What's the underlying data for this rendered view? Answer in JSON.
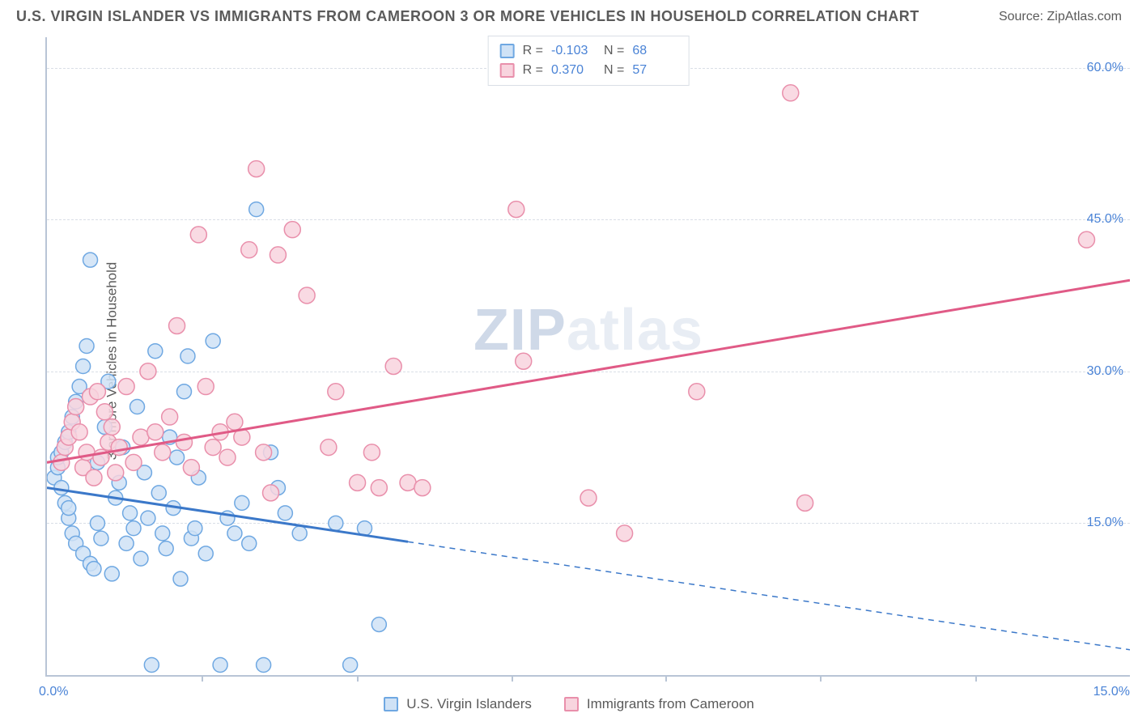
{
  "header": {
    "title": "U.S. VIRGIN ISLANDER VS IMMIGRANTS FROM CAMEROON 3 OR MORE VEHICLES IN HOUSEHOLD CORRELATION CHART",
    "source": "Source: ZipAtlas.com"
  },
  "y_axis": {
    "label": "3 or more Vehicles in Household",
    "ticks": [
      {
        "value": 15.0,
        "label": "15.0%"
      },
      {
        "value": 30.0,
        "label": "30.0%"
      },
      {
        "value": 45.0,
        "label": "45.0%"
      },
      {
        "value": 60.0,
        "label": "60.0%"
      }
    ],
    "min": 0.0,
    "max": 63.0
  },
  "x_axis": {
    "ticks": [
      {
        "value": 0.0,
        "label": "0.0%"
      },
      {
        "value": 15.0,
        "label": "15.0%"
      }
    ],
    "intermediate_ticks": [
      2.14,
      4.29,
      6.43,
      8.57,
      10.71,
      12.86
    ],
    "min": 0.0,
    "max": 15.0
  },
  "legend_top": {
    "rows": [
      {
        "swatch_fill": "#cfe2f6",
        "swatch_border": "#6fa8e2",
        "r_label": "R =",
        "r_value": "-0.103",
        "n_label": "N =",
        "n_value": "68"
      },
      {
        "swatch_fill": "#f8d4de",
        "swatch_border": "#e98fab",
        "r_label": "R =",
        "r_value": "0.370",
        "n_label": "N =",
        "n_value": "57"
      }
    ]
  },
  "legend_bottom": {
    "items": [
      {
        "swatch_fill": "#cfe2f6",
        "swatch_border": "#6fa8e2",
        "label": "U.S. Virgin Islanders"
      },
      {
        "swatch_fill": "#f8d4de",
        "swatch_border": "#e98fab",
        "label": "Immigrants from Cameroon"
      }
    ]
  },
  "watermark": {
    "part1": "ZIP",
    "part2": "atlas"
  },
  "series": [
    {
      "name": "U.S. Virgin Islanders",
      "color_fill": "#cfe2f6",
      "color_stroke": "#6fa8e2",
      "marker_radius": 9,
      "regression": {
        "color": "#3b78c9",
        "width": 3,
        "solid_from_x": 0.0,
        "solid_to_x": 5.0,
        "dash_from_x": 5.0,
        "dash_to_x": 15.0,
        "y_at_x0": 18.5,
        "y_at_x15": 2.5
      },
      "points": [
        [
          0.1,
          19.5
        ],
        [
          0.15,
          20.5
        ],
        [
          0.15,
          21.5
        ],
        [
          0.2,
          22.0
        ],
        [
          0.2,
          18.5
        ],
        [
          0.25,
          17.0
        ],
        [
          0.25,
          23.0
        ],
        [
          0.3,
          15.5
        ],
        [
          0.3,
          16.5
        ],
        [
          0.3,
          24.0
        ],
        [
          0.35,
          14.0
        ],
        [
          0.35,
          25.5
        ],
        [
          0.4,
          27.0
        ],
        [
          0.4,
          13.0
        ],
        [
          0.45,
          28.5
        ],
        [
          0.5,
          30.5
        ],
        [
          0.5,
          12.0
        ],
        [
          0.55,
          32.5
        ],
        [
          0.6,
          41.0
        ],
        [
          0.6,
          11.0
        ],
        [
          0.65,
          10.5
        ],
        [
          0.7,
          15.0
        ],
        [
          0.7,
          21.0
        ],
        [
          0.75,
          13.5
        ],
        [
          0.8,
          24.5
        ],
        [
          0.85,
          29.0
        ],
        [
          0.9,
          10.0
        ],
        [
          0.95,
          17.5
        ],
        [
          1.0,
          19.0
        ],
        [
          1.05,
          22.5
        ],
        [
          1.1,
          13.0
        ],
        [
          1.15,
          16.0
        ],
        [
          1.2,
          14.5
        ],
        [
          1.25,
          26.5
        ],
        [
          1.3,
          11.5
        ],
        [
          1.35,
          20.0
        ],
        [
          1.4,
          15.5
        ],
        [
          1.45,
          1.0
        ],
        [
          1.5,
          32.0
        ],
        [
          1.55,
          18.0
        ],
        [
          1.6,
          14.0
        ],
        [
          1.65,
          12.5
        ],
        [
          1.7,
          23.5
        ],
        [
          1.75,
          16.5
        ],
        [
          1.8,
          21.5
        ],
        [
          1.85,
          9.5
        ],
        [
          1.9,
          28.0
        ],
        [
          1.95,
          31.5
        ],
        [
          2.0,
          13.5
        ],
        [
          2.05,
          14.5
        ],
        [
          2.1,
          19.5
        ],
        [
          2.2,
          12.0
        ],
        [
          2.3,
          33.0
        ],
        [
          2.4,
          1.0
        ],
        [
          2.5,
          15.5
        ],
        [
          2.6,
          14.0
        ],
        [
          2.7,
          17.0
        ],
        [
          2.8,
          13.0
        ],
        [
          2.9,
          46.0
        ],
        [
          3.0,
          1.0
        ],
        [
          3.1,
          22.0
        ],
        [
          3.2,
          18.5
        ],
        [
          3.3,
          16.0
        ],
        [
          3.5,
          14.0
        ],
        [
          4.0,
          15.0
        ],
        [
          4.2,
          1.0
        ],
        [
          4.4,
          14.5
        ],
        [
          4.6,
          5.0
        ]
      ]
    },
    {
      "name": "Immigrants from Cameroon",
      "color_fill": "#f8d4de",
      "color_stroke": "#e98fab",
      "marker_radius": 10,
      "regression": {
        "color": "#e05a86",
        "width": 3,
        "solid_from_x": 0.0,
        "solid_to_x": 15.0,
        "dash_from_x": 15.0,
        "dash_to_x": 15.0,
        "y_at_x0": 21.0,
        "y_at_x15": 39.0
      },
      "points": [
        [
          0.2,
          21.0
        ],
        [
          0.25,
          22.5
        ],
        [
          0.3,
          23.5
        ],
        [
          0.35,
          25.0
        ],
        [
          0.4,
          26.5
        ],
        [
          0.45,
          24.0
        ],
        [
          0.5,
          20.5
        ],
        [
          0.55,
          22.0
        ],
        [
          0.6,
          27.5
        ],
        [
          0.65,
          19.5
        ],
        [
          0.7,
          28.0
        ],
        [
          0.75,
          21.5
        ],
        [
          0.8,
          26.0
        ],
        [
          0.85,
          23.0
        ],
        [
          0.9,
          24.5
        ],
        [
          0.95,
          20.0
        ],
        [
          1.0,
          22.5
        ],
        [
          1.1,
          28.5
        ],
        [
          1.2,
          21.0
        ],
        [
          1.3,
          23.5
        ],
        [
          1.4,
          30.0
        ],
        [
          1.5,
          24.0
        ],
        [
          1.6,
          22.0
        ],
        [
          1.7,
          25.5
        ],
        [
          1.8,
          34.5
        ],
        [
          1.9,
          23.0
        ],
        [
          2.0,
          20.5
        ],
        [
          2.1,
          43.5
        ],
        [
          2.2,
          28.5
        ],
        [
          2.3,
          22.5
        ],
        [
          2.4,
          24.0
        ],
        [
          2.5,
          21.5
        ],
        [
          2.6,
          25.0
        ],
        [
          2.7,
          23.5
        ],
        [
          2.8,
          42.0
        ],
        [
          2.9,
          50.0
        ],
        [
          3.0,
          22.0
        ],
        [
          3.1,
          18.0
        ],
        [
          3.2,
          41.5
        ],
        [
          3.4,
          44.0
        ],
        [
          3.6,
          37.5
        ],
        [
          3.9,
          22.5
        ],
        [
          4.0,
          28.0
        ],
        [
          4.3,
          19.0
        ],
        [
          4.5,
          22.0
        ],
        [
          4.6,
          18.5
        ],
        [
          4.8,
          30.5
        ],
        [
          5.0,
          19.0
        ],
        [
          5.2,
          18.5
        ],
        [
          6.5,
          46.0
        ],
        [
          6.6,
          31.0
        ],
        [
          7.5,
          17.5
        ],
        [
          8.0,
          14.0
        ],
        [
          9.0,
          28.0
        ],
        [
          10.3,
          57.5
        ],
        [
          10.5,
          17.0
        ],
        [
          14.4,
          43.0
        ]
      ]
    }
  ],
  "colors": {
    "background": "#ffffff",
    "axis": "#b9c5d6",
    "grid": "#d9dee6",
    "tick_label": "#4a83d6",
    "text": "#5a5a5a"
  }
}
